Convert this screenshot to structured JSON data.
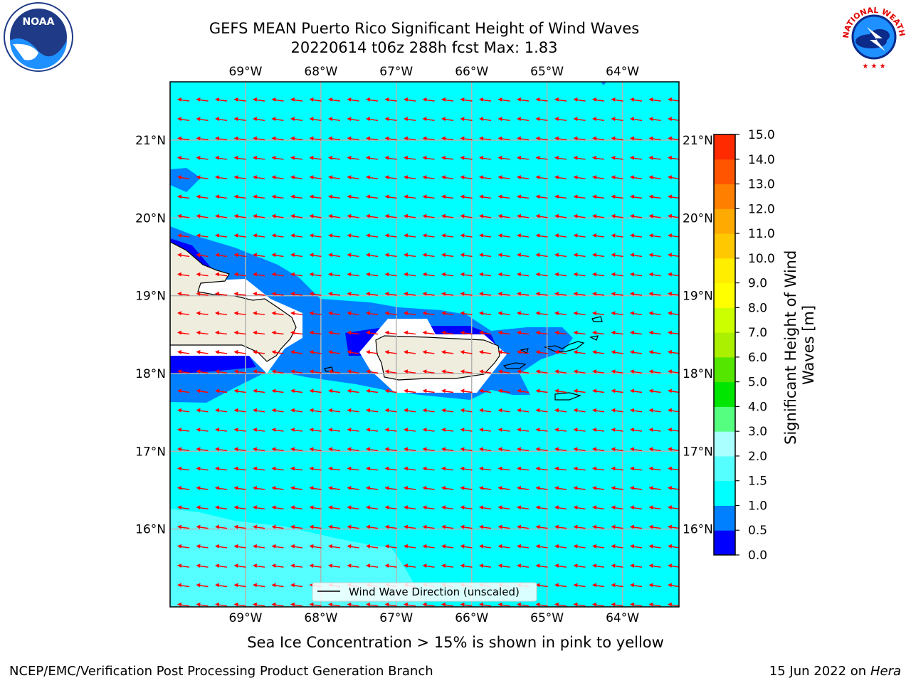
{
  "header": {
    "title_line1": "GEFS MEAN Puerto Rico Significant Height of Wind Waves",
    "title_line2": "20220614 t06z 288h fcst   Max: 1.83"
  },
  "logos": {
    "left": {
      "name": "noaa-logo",
      "text": "NOAA"
    },
    "right": {
      "name": "nws-logo",
      "text": "NATIONAL WEATHER SERVICE"
    }
  },
  "map": {
    "lon_range": [
      -70.0,
      -63.25
    ],
    "lat_range": [
      15.0,
      21.75
    ],
    "lon_ticks": [
      "69°W",
      "68°W",
      "67°W",
      "66°W",
      "65°W",
      "64°W"
    ],
    "lat_ticks": [
      "16°N",
      "17°N",
      "18°N",
      "19°N",
      "20°N",
      "21°N"
    ],
    "legend": "Wind Wave Direction (unscaled)",
    "arrow_color": "#ff0000",
    "ocean_color": "#00ffff",
    "land_color": "#efedde"
  },
  "colorbar": {
    "label": "Significant Height of Wind Waves [m]",
    "ticks": [
      "0.0",
      "0.5",
      "1.0",
      "1.5",
      "2.0",
      "3.0",
      "4.0",
      "5.0",
      "6.0",
      "7.0",
      "8.0",
      "9.0",
      "10.0",
      "11.0",
      "12.0",
      "13.0",
      "14.0",
      "15.0"
    ],
    "colors": [
      "#0000ff",
      "#0080ff",
      "#00ffff",
      "#55ffff",
      "#aaffff",
      "#55ff80",
      "#00e600",
      "#55e600",
      "#aaf000",
      "#ccff00",
      "#ffff00",
      "#ffee00",
      "#ffc800",
      "#ffaa00",
      "#ff8000",
      "#ff5500",
      "#ff2a00",
      "#ff0000"
    ]
  },
  "footer": {
    "sea_ice_note": "Sea Ice Concentration > 15% is shown in pink to yellow",
    "branch": "NCEP/EMC/Verification Post Processing Product Generation Branch",
    "date": "15 Jun 2022 on",
    "machine": "Hera"
  }
}
